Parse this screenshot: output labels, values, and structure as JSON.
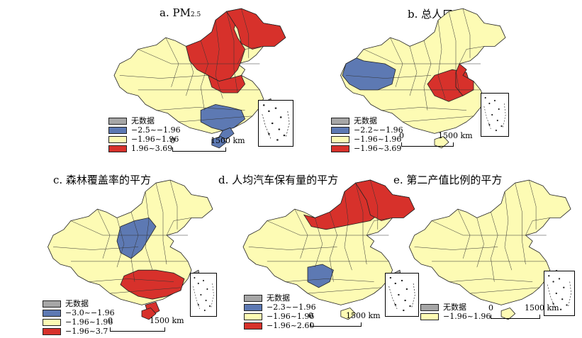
{
  "colors": {
    "nodata": "#a6a6a6",
    "low": "#5d79b3",
    "mid": "#fdfbb4",
    "high": "#d7312b",
    "border": "#222222"
  },
  "panels": [
    {
      "id": "a",
      "title": "a. PM",
      "title_sub": "2.5",
      "legend": [
        {
          "cls": "nodata",
          "label": "无数据"
        },
        {
          "cls": "low",
          "label": "−2.5~−1.96"
        },
        {
          "cls": "mid",
          "label": "−1.96~1.96"
        },
        {
          "cls": "high",
          "label": "1.96~3.69"
        }
      ],
      "scale": {
        "zero": "0",
        "end": "1500 km"
      },
      "regions": {
        "north": "high",
        "northeast": "high",
        "central": "high",
        "south": "low",
        "southeast": "low"
      }
    },
    {
      "id": "b",
      "title": "b. 总人口",
      "title_sub": "",
      "legend": [
        {
          "cls": "nodata",
          "label": "无数据"
        },
        {
          "cls": "low",
          "label": "−2.2~−1.96"
        },
        {
          "cls": "mid",
          "label": "−1.96~1.96"
        },
        {
          "cls": "high",
          "label": "−1.96~3.69"
        }
      ],
      "scale": {
        "zero": "0",
        "end": "1500 km"
      },
      "regions": {
        "tibet": "low",
        "central": "high",
        "east": "high"
      }
    },
    {
      "id": "c",
      "title": "c. 森林覆盖率的平方",
      "title_sub": "",
      "legend": [
        {
          "cls": "nodata",
          "label": "无数据"
        },
        {
          "cls": "low",
          "label": "−3.0~−1.96"
        },
        {
          "cls": "mid",
          "label": "−1.96~1.96"
        },
        {
          "cls": "high",
          "label": "−1.96~3.7"
        }
      ],
      "scale": {
        "zero": "0",
        "end": "1500 km"
      },
      "regions": {
        "north": "low",
        "south": "high",
        "southeast": "high"
      }
    },
    {
      "id": "d",
      "title": "d. 人均汽车保有量的平方",
      "title_sub": "",
      "legend": [
        {
          "cls": "nodata",
          "label": "无数据"
        },
        {
          "cls": "low",
          "label": "−2.3~−1.96"
        },
        {
          "cls": "mid",
          "label": "−1.96~1.96"
        },
        {
          "cls": "high",
          "label": "−1.96~2.60"
        }
      ],
      "scale": {
        "zero": "0",
        "end": "1500 km"
      },
      "regions": {
        "innermongolia": "high",
        "northeast": "high",
        "southwest": "low"
      }
    },
    {
      "id": "e",
      "title": "e. 第二产值比例的平方",
      "title_sub": "",
      "legend": [
        {
          "cls": "nodata",
          "label": "无数据"
        },
        {
          "cls": "mid",
          "label": "−1.96~1.96"
        }
      ],
      "scale": {
        "zero": "0",
        "end": "1500 km"
      },
      "regions": {}
    }
  ]
}
